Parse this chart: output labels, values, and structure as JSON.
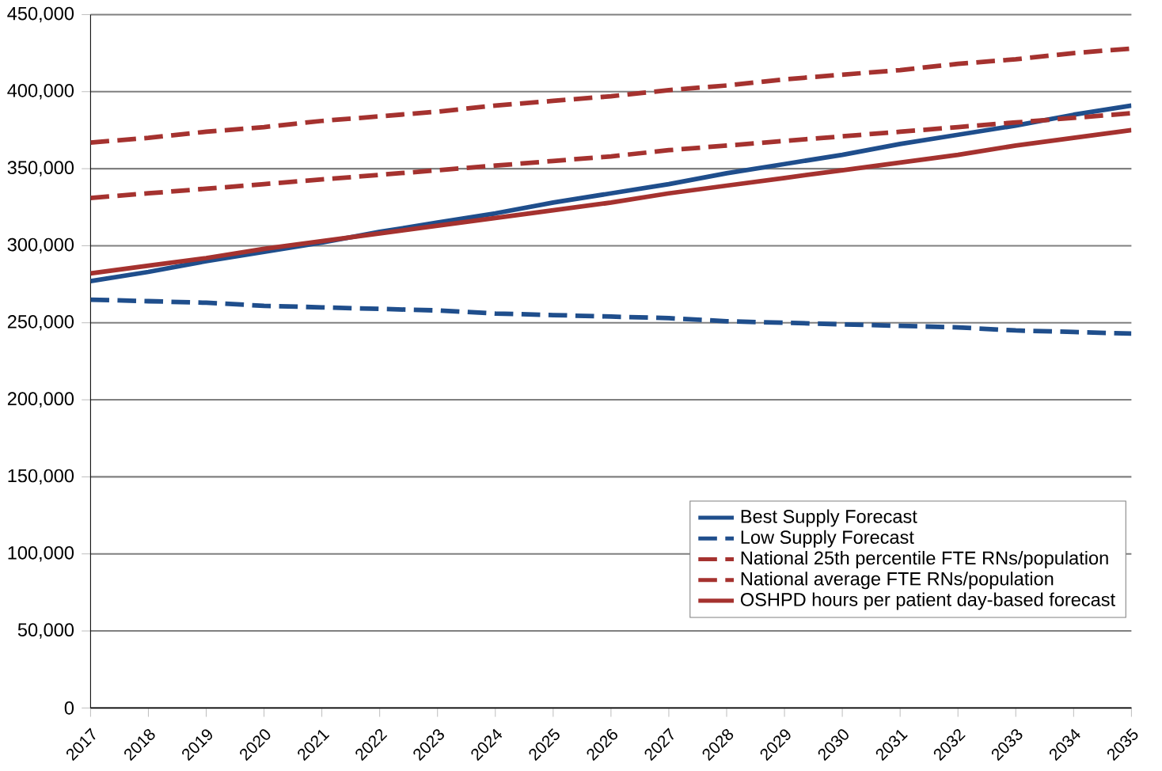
{
  "chart_data": {
    "type": "line",
    "categories": [
      "2017",
      "2018",
      "2019",
      "2020",
      "2021",
      "2022",
      "2023",
      "2024",
      "2025",
      "2026",
      "2027",
      "2028",
      "2029",
      "2030",
      "2031",
      "2032",
      "2033",
      "2034",
      "2035"
    ],
    "series": [
      {
        "name": "Best Supply Forecast",
        "color": "#1f4e8c",
        "line_style": "solid",
        "values": [
          277000,
          283000,
          290000,
          296000,
          302000,
          309000,
          315000,
          321000,
          328000,
          334000,
          340000,
          347000,
          353000,
          359000,
          366000,
          372000,
          378000,
          385000,
          391000
        ]
      },
      {
        "name": "Low Supply Forecast",
        "color": "#1f4e8c",
        "line_style": "dashed",
        "values": [
          265000,
          264000,
          263000,
          261000,
          260000,
          259000,
          258000,
          256000,
          255000,
          254000,
          253000,
          251000,
          250000,
          249000,
          248000,
          247000,
          245000,
          244000,
          243000
        ]
      },
      {
        "name": "National 25th percentile FTE RNs/population",
        "color": "#a5322f",
        "line_style": "dashed",
        "values": [
          331000,
          334000,
          337000,
          340000,
          343000,
          346000,
          349000,
          352000,
          355000,
          358000,
          362000,
          365000,
          368000,
          371000,
          374000,
          377000,
          380000,
          383000,
          386000
        ]
      },
      {
        "name": "National average FTE RNs/population",
        "color": "#a5322f",
        "line_style": "dashed",
        "values": [
          367000,
          370000,
          374000,
          377000,
          381000,
          384000,
          387000,
          391000,
          394000,
          397000,
          401000,
          404000,
          408000,
          411000,
          414000,
          418000,
          421000,
          425000,
          428000
        ]
      },
      {
        "name": "OSHPD hours per patient day-based forecast",
        "color": "#a5322f",
        "line_style": "solid",
        "values": [
          282000,
          287000,
          292000,
          298000,
          303000,
          308000,
          313000,
          318000,
          323000,
          328000,
          334000,
          339000,
          344000,
          349000,
          354000,
          359000,
          365000,
          370000,
          375000
        ]
      }
    ],
    "ylim": [
      0,
      450000
    ],
    "yticks": [
      {
        "value": 0,
        "label": "0"
      },
      {
        "value": 50000,
        "label": "50,000"
      },
      {
        "value": 100000,
        "label": "100,000"
      },
      {
        "value": 150000,
        "label": "150,000"
      },
      {
        "value": 200000,
        "label": "200,000"
      },
      {
        "value": 250000,
        "label": "250,000"
      },
      {
        "value": 300000,
        "label": "300,000"
      },
      {
        "value": 350000,
        "label": "350,000"
      },
      {
        "value": 400000,
        "label": "400,000"
      },
      {
        "value": 450000,
        "label": "450,000"
      }
    ],
    "grid": "y",
    "legend": "bottom right",
    "marker": "none"
  }
}
